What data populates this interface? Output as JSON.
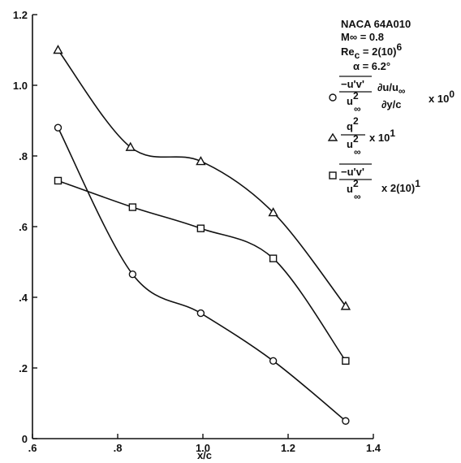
{
  "chart_data": {
    "type": "scatter",
    "title": "",
    "xlabel": "x/c",
    "ylabel": "",
    "xlim": [
      0.6,
      1.4
    ],
    "ylim": [
      0,
      1.2
    ],
    "grid": false,
    "legend_position": "top-right",
    "x_ticks": [
      ".6",
      ".8",
      "1.0",
      "1.2",
      "1.4"
    ],
    "y_ticks": [
      "0",
      ".2",
      ".4",
      ".6",
      ".8",
      "1.0",
      "1.2"
    ],
    "annotation": {
      "line1": "NACA 64A010",
      "mach": "M∞ = 0.8",
      "re_base": "Re",
      "re_sub": "c",
      "re_val": " = 2(10)",
      "re_exp": "6",
      "alpha": "α = 6.2°"
    },
    "series": [
      {
        "marker": "circle",
        "legend": {
          "num1": "−u'v'",
          "den1": "u",
          "den1_sup": "2",
          "den1_sub": "∞",
          "num2": "∂u/u",
          "num2_sub": "∞",
          "den2": "∂y/c",
          "factor": "x 10",
          "factor_sup": "0"
        },
        "points": [
          [
            0.66,
            0.88
          ],
          [
            0.835,
            0.465
          ],
          [
            0.995,
            0.355
          ],
          [
            1.165,
            0.22
          ],
          [
            1.335,
            0.05
          ]
        ]
      },
      {
        "marker": "triangle",
        "legend": {
          "num1": "q",
          "num1_sup": "2",
          "den1": "u",
          "den1_sup": "2",
          "den1_sub": "∞",
          "factor": "x 10",
          "factor_sup": "1"
        },
        "points": [
          [
            0.66,
            1.1
          ],
          [
            0.83,
            0.825
          ],
          [
            0.995,
            0.785
          ],
          [
            1.165,
            0.64
          ],
          [
            1.335,
            0.375
          ]
        ]
      },
      {
        "marker": "square",
        "legend": {
          "num1": "−u'v'",
          "den1": "u",
          "den1_sup": "2",
          "den1_sub": "∞",
          "factor": "x 2(10)",
          "factor_sup": "1"
        },
        "points": [
          [
            0.66,
            0.73
          ],
          [
            0.835,
            0.655
          ],
          [
            0.995,
            0.595
          ],
          [
            1.165,
            0.51
          ],
          [
            1.335,
            0.22
          ]
        ]
      }
    ]
  }
}
